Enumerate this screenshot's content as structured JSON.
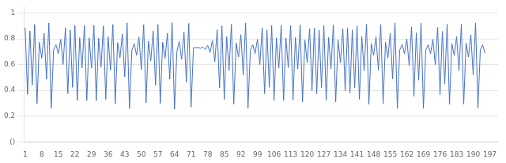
{
  "chart_data": {
    "type": "line",
    "x": [
      1,
      2,
      3,
      4,
      5,
      6,
      7,
      8,
      9,
      10,
      11,
      12,
      13,
      14,
      15,
      16,
      17,
      18,
      19,
      20,
      21,
      22,
      23,
      24,
      25,
      26,
      27,
      28,
      29,
      30,
      31,
      32,
      33,
      34,
      35,
      36,
      37,
      38,
      39,
      40,
      41,
      42,
      43,
      44,
      45,
      46,
      47,
      48,
      49,
      50,
      51,
      52,
      53,
      54,
      55,
      56,
      57,
      58,
      59,
      60,
      61,
      62,
      63,
      64,
      65,
      66,
      67,
      68,
      69,
      70,
      71,
      72,
      73,
      74,
      75,
      76,
      77,
      78,
      79,
      80,
      81,
      82,
      83,
      84,
      85,
      86,
      87,
      88,
      89,
      90,
      91,
      92,
      93,
      94,
      95,
      96,
      97,
      98,
      99,
      100,
      101,
      102,
      103,
      104,
      105,
      106,
      107,
      108,
      109,
      110,
      111,
      112,
      113,
      114,
      115,
      116,
      117,
      118,
      119,
      120,
      121,
      122,
      123,
      124,
      125,
      126,
      127,
      128,
      129,
      130,
      131,
      132,
      133,
      134,
      135,
      136,
      137,
      138,
      139,
      140,
      141,
      142,
      143,
      144,
      145,
      146,
      147,
      148,
      149,
      150,
      151,
      152,
      153,
      154,
      155,
      156,
      157,
      158,
      159,
      160,
      161,
      162,
      163,
      164,
      165,
      166,
      167,
      168,
      169,
      170,
      171,
      172,
      173,
      174,
      175,
      176,
      177,
      178,
      179,
      180,
      181,
      182,
      183,
      184,
      185,
      186,
      187,
      188,
      189,
      190,
      191,
      192,
      193,
      194,
      195
    ],
    "values": [
      0.888,
      0.368,
      0.861,
      0.442,
      0.912,
      0.297,
      0.773,
      0.649,
      0.843,
      0.488,
      0.924,
      0.26,
      0.714,
      0.754,
      0.686,
      0.796,
      0.601,
      0.886,
      0.374,
      0.868,
      0.423,
      0.904,
      0.321,
      0.808,
      0.573,
      0.904,
      0.322,
      0.808,
      0.572,
      0.905,
      0.319,
      0.805,
      0.58,
      0.901,
      0.329,
      0.816,
      0.556,
      0.912,
      0.296,
      0.771,
      0.654,
      0.837,
      0.506,
      0.924,
      0.258,
      0.71,
      0.762,
      0.673,
      0.814,
      0.561,
      0.91,
      0.303,
      0.782,
      0.631,
      0.862,
      0.44,
      0.912,
      0.298,
      0.774,
      0.648,
      0.844,
      0.486,
      0.926,
      0.253,
      0.699,
      0.779,
      0.64,
      0.853,
      0.464,
      0.92,
      0.269,
      0.73,
      0.729,
      0.731,
      0.726,
      0.737,
      0.717,
      0.749,
      0.694,
      0.786,
      0.622,
      0.87,
      0.419,
      0.901,
      0.33,
      0.817,
      0.553,
      0.913,
      0.293,
      0.768,
      0.66,
      0.832,
      0.518,
      0.924,
      0.26,
      0.714,
      0.754,
      0.686,
      0.796,
      0.601,
      0.886,
      0.374,
      0.868,
      0.423,
      0.904,
      0.322,
      0.808,
      0.572,
      0.904,
      0.321,
      0.806,
      0.577,
      0.903,
      0.324,
      0.811,
      0.566,
      0.908,
      0.309,
      0.79,
      0.614,
      0.877,
      0.397,
      0.886,
      0.374,
      0.868,
      0.422,
      0.903,
      0.324,
      0.811,
      0.566,
      0.908,
      0.31,
      0.791,
      0.613,
      0.878,
      0.395,
      0.884,
      0.379,
      0.87,
      0.419,
      0.901,
      0.33,
      0.818,
      0.552,
      0.914,
      0.29,
      0.763,
      0.671,
      0.817,
      0.556,
      0.912,
      0.297,
      0.773,
      0.649,
      0.843,
      0.489,
      0.924,
      0.259,
      0.713,
      0.756,
      0.683,
      0.8,
      0.592,
      0.893,
      0.354,
      0.847,
      0.479,
      0.924,
      0.26,
      0.713,
      0.755,
      0.685,
      0.797,
      0.598,
      0.889,
      0.365,
      0.858,
      0.45,
      0.914,
      0.291,
      0.764,
      0.67,
      0.818,
      0.553,
      0.913,
      0.293,
      0.768,
      0.659,
      0.832,
      0.519,
      0.924,
      0.26,
      0.714,
      0.753,
      0.688
    ],
    "color": "#4472C4",
    "xlim": [
      0.5,
      200.5
    ],
    "xticks": [
      1,
      8,
      15,
      22,
      29,
      36,
      43,
      50,
      57,
      64,
      71,
      78,
      85,
      92,
      99,
      106,
      113,
      120,
      127,
      134,
      141,
      148,
      155,
      162,
      169,
      176,
      183,
      190,
      197
    ],
    "ylim": [
      0.0,
      1.05
    ],
    "yticks": [
      {
        "value": 0,
        "label": "()"
      },
      0.2,
      0.4,
      0.6,
      0.8,
      1
    ],
    "grid": true
  }
}
